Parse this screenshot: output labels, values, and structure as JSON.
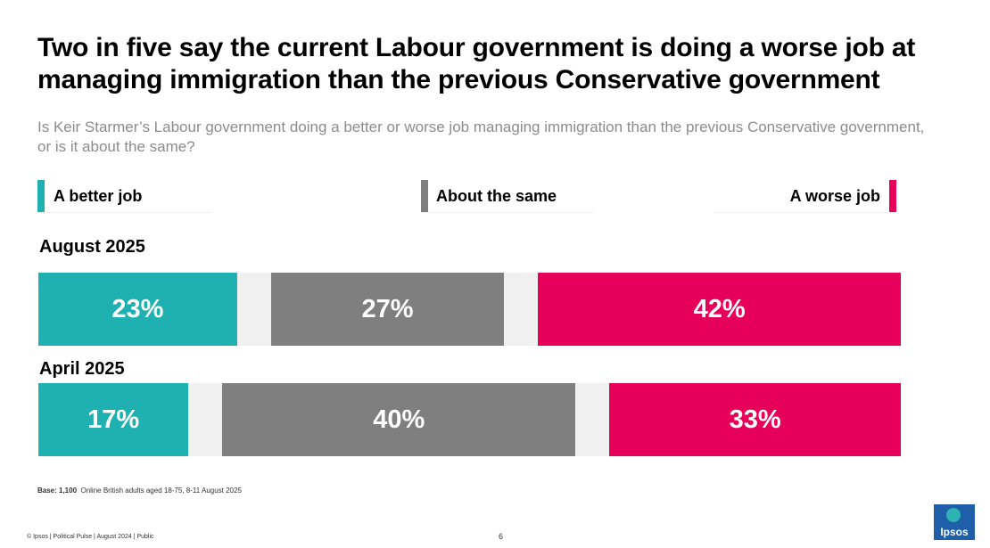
{
  "title": "Two in five say the current Labour government is doing a worse job at managing immigration than the previous Conservative government",
  "subtitle": "Is Keir Starmer’s Labour government doing a better or worse job managing immigration than the previous Conservative government, or is it about the same?",
  "colors": {
    "better": "#1fb1b1",
    "same": "#7f7f7f",
    "worse": "#e6005a",
    "gap": "#f0f0f0"
  },
  "chart_data": {
    "type": "bar",
    "orientation": "horizontal-stacked",
    "legend": [
      "A better job",
      "About the same",
      "A worse job"
    ],
    "categories": [
      "August 2025",
      "April 2025"
    ],
    "series": [
      {
        "name": "A better job",
        "values": [
          23,
          17
        ],
        "labels": [
          "23%",
          "17%"
        ]
      },
      {
        "name": "About the same",
        "values": [
          27,
          40
        ],
        "labels": [
          "27%",
          "40%"
        ]
      },
      {
        "name": "A worse job",
        "values": [
          42,
          33
        ],
        "labels": [
          "42%",
          "33%"
        ]
      }
    ],
    "xlim": [
      0,
      100
    ],
    "legend_position": "top"
  },
  "base": {
    "label": "Base: 1,100",
    "text": "Online British adults aged 18-75, 8-11 August 2025"
  },
  "footer": "© Ipsos | Political Pulse | August 2024 | Public",
  "page_number": "6",
  "logo_text": "Ipsos"
}
